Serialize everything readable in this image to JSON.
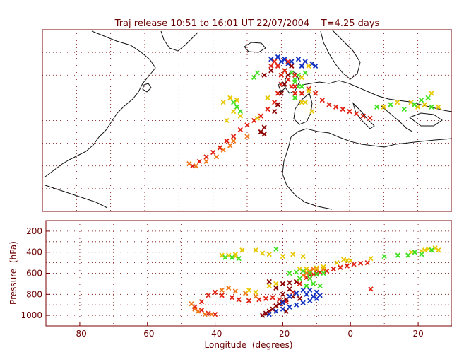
{
  "colors": {
    "frame": "#7a0000",
    "grid": "#7a0000",
    "coast": "#111111",
    "red": "#e02010",
    "darkred": "#8b0000",
    "orange": "#f07818",
    "yellow": "#e8c800",
    "green": "#40e020",
    "blue": "#1030c0"
  },
  "chart_data": [
    {
      "type": "scatter",
      "title": "Traj release 10:51 to 16:01 UT 22/07/2004    T=4.25 days",
      "xlim": [
        -90,
        30
      ],
      "ylim": [
        0,
        80
      ],
      "grid": true,
      "series": [
        {
          "color": "blue",
          "points": [
            [
              -23,
              67
            ],
            [
              -21,
              68
            ],
            [
              -19,
              67
            ],
            [
              -17,
              66
            ],
            [
              -15,
              67
            ],
            [
              -13,
              66
            ],
            [
              -11,
              65
            ],
            [
              -10,
              64
            ],
            [
              -18,
              65
            ],
            [
              -14,
              64
            ],
            [
              -20,
              66
            ]
          ]
        },
        {
          "color": "green",
          "points": [
            [
              -19,
              62
            ],
            [
              -17,
              61
            ],
            [
              -15,
              60
            ],
            [
              -13,
              61
            ],
            [
              -16,
              58
            ],
            [
              -15,
              55
            ],
            [
              -14,
              52
            ],
            [
              -16,
              50
            ],
            [
              -33,
              46
            ],
            [
              -32,
              44
            ],
            [
              -16,
              57
            ],
            [
              -14,
              55
            ]
          ]
        },
        {
          "color": "red",
          "points": [
            [
              -46,
              20
            ],
            [
              -44,
              22
            ],
            [
              -42,
              24
            ],
            [
              -40,
              26
            ],
            [
              -38,
              28
            ],
            [
              -36,
              31
            ],
            [
              -34,
              33
            ],
            [
              -32,
              36
            ],
            [
              -30,
              38
            ],
            [
              -28,
              40
            ],
            [
              -26,
              42
            ],
            [
              -24,
              45
            ],
            [
              -22,
              48
            ],
            [
              -21,
              52
            ],
            [
              -20,
              56
            ],
            [
              -20,
              60
            ],
            [
              -21,
              64
            ],
            [
              -22,
              66
            ],
            [
              -19,
              62
            ],
            [
              -18,
              58
            ],
            [
              -17,
              55
            ],
            [
              -16,
              52
            ],
            [
              -14,
              52
            ],
            [
              -12,
              54
            ],
            [
              -10,
              52
            ],
            [
              -8,
              49
            ],
            [
              -6,
              47
            ],
            [
              -4,
              46
            ],
            [
              -2,
              45
            ],
            [
              0,
              44
            ],
            [
              2,
              43
            ],
            [
              4,
              42
            ],
            [
              6,
              41
            ],
            [
              -23,
              64
            ],
            [
              -18,
              66
            ],
            [
              -16,
              60
            ],
            [
              -16,
              55
            ]
          ]
        },
        {
          "color": "darkred",
          "points": [
            [
              -26,
              35
            ],
            [
              -25,
              34
            ],
            [
              -25,
              37
            ],
            [
              -22,
              44
            ],
            [
              -21,
              47
            ],
            [
              -20,
              52
            ],
            [
              -19,
              56
            ],
            [
              -18,
              60
            ],
            [
              -17,
              64
            ],
            [
              -25,
              60
            ],
            [
              -23,
              62
            ]
          ]
        },
        {
          "color": "orange",
          "points": [
            [
              -47,
              21
            ],
            [
              -45,
              20
            ],
            [
              -42,
              22
            ],
            [
              -39,
              24
            ],
            [
              -37,
              27
            ],
            [
              -35,
              29
            ],
            [
              -30,
              33
            ],
            [
              -34,
              31
            ]
          ]
        },
        {
          "color": "yellow",
          "points": [
            [
              -37,
              48
            ],
            [
              -35,
              50
            ],
            [
              -34,
              44
            ],
            [
              -32,
              42
            ],
            [
              -36,
              40
            ],
            [
              -27,
              41
            ],
            [
              -24,
              50
            ],
            [
              -14,
              48
            ],
            [
              -12,
              53
            ],
            [
              -14,
              59
            ],
            [
              -12,
              64
            ],
            [
              -13,
              48
            ],
            [
              -11,
              44
            ],
            [
              10,
              46
            ],
            [
              14,
              48
            ],
            [
              18,
              48
            ],
            [
              24,
              52
            ],
            [
              22,
              47
            ],
            [
              20,
              46
            ],
            [
              26,
              46
            ],
            [
              -33,
              49
            ]
          ]
        },
        {
          "color": "green",
          "points": [
            [
              16,
              45
            ],
            [
              19,
              47
            ],
            [
              21,
              49
            ],
            [
              23,
              50
            ],
            [
              12,
              47
            ],
            [
              24,
              46
            ],
            [
              -28,
              59
            ],
            [
              -27,
              61
            ],
            [
              8,
              46
            ],
            [
              -34,
              48
            ]
          ]
        }
      ]
    },
    {
      "type": "scatter",
      "title": "",
      "xlabel": "Longitude  (degrees)",
      "ylabel": "Pressure  (hPa)",
      "xlim": [
        -90,
        30
      ],
      "ylim": [
        1100,
        100
      ],
      "xticks": [
        -80,
        -60,
        -40,
        -20,
        0,
        20
      ],
      "yticks": [
        200,
        400,
        600,
        800,
        1000
      ],
      "grid": true,
      "series": [
        {
          "color": "red",
          "points": [
            [
              -46,
              920
            ],
            [
              -44,
              870
            ],
            [
              -42,
              810
            ],
            [
              -40,
              780
            ],
            [
              -38,
              810
            ],
            [
              -35,
              830
            ],
            [
              -33,
              850
            ],
            [
              -30,
              860
            ],
            [
              -27,
              850
            ],
            [
              -25,
              840
            ],
            [
              -23,
              830
            ],
            [
              -21,
              850
            ],
            [
              -19,
              870
            ],
            [
              -17,
              780
            ],
            [
              -15,
              700
            ],
            [
              -13,
              640
            ],
            [
              -11,
              610
            ],
            [
              -9,
              590
            ],
            [
              -7,
              580
            ],
            [
              -5,
              560
            ],
            [
              -3,
              545
            ],
            [
              -1,
              530
            ],
            [
              1,
              515
            ],
            [
              3,
              505
            ],
            [
              5,
              500
            ],
            [
              -44,
              950
            ],
            [
              -42,
              980
            ],
            [
              -40,
              990
            ],
            [
              -12,
              620
            ],
            [
              -10,
              600
            ],
            [
              -16,
              680
            ],
            [
              6,
              750
            ]
          ]
        },
        {
          "color": "darkred",
          "points": [
            [
              -26,
              1000
            ],
            [
              -25,
              980
            ],
            [
              -24,
              960
            ],
            [
              -23,
              940
            ],
            [
              -22,
              910
            ],
            [
              -21,
              890
            ],
            [
              -20,
              870
            ],
            [
              -19,
              850
            ],
            [
              -22,
              740
            ],
            [
              -20,
              700
            ],
            [
              -18,
              690
            ],
            [
              -16,
              680
            ],
            [
              -24,
              680
            ],
            [
              -18,
              750
            ],
            [
              -20,
              800
            ],
            [
              -17,
              820
            ],
            [
              -15,
              840
            ],
            [
              -19,
              960
            ]
          ]
        },
        {
          "color": "orange",
          "points": [
            [
              -47,
              890
            ],
            [
              -46,
              940
            ],
            [
              -45,
              960
            ],
            [
              -43,
              990
            ],
            [
              -41,
              990
            ],
            [
              -38,
              760
            ],
            [
              -36,
              740
            ],
            [
              -34,
              770
            ],
            [
              -31,
              790
            ],
            [
              -28,
              820
            ],
            [
              -12,
              580
            ],
            [
              -10,
              560
            ],
            [
              -8,
              560
            ],
            [
              -13,
              600
            ],
            [
              -14,
              620
            ],
            [
              -11,
              560
            ]
          ]
        },
        {
          "color": "yellow",
          "points": [
            [
              -38,
              430
            ],
            [
              -36,
              430
            ],
            [
              -34,
              440
            ],
            [
              -32,
              380
            ],
            [
              -28,
              380
            ],
            [
              -26,
              410
            ],
            [
              -24,
              420
            ],
            [
              -20,
              440
            ],
            [
              -17,
              420
            ],
            [
              -14,
              440
            ],
            [
              -30,
              760
            ],
            [
              -28,
              780
            ],
            [
              -24,
              720
            ],
            [
              -22,
              700
            ],
            [
              -15,
              560
            ],
            [
              -13,
              560
            ],
            [
              -10,
              550
            ],
            [
              -8,
              540
            ],
            [
              0,
              480
            ],
            [
              6,
              460
            ],
            [
              -4,
              500
            ],
            [
              -2,
              470
            ],
            [
              -1,
              480
            ],
            [
              18,
              400
            ],
            [
              21,
              390
            ],
            [
              23,
              370
            ],
            [
              25,
              360
            ],
            [
              22,
              380
            ],
            [
              26,
              380
            ],
            [
              -34,
              420
            ]
          ]
        },
        {
          "color": "green",
          "points": [
            [
              -37,
              450
            ],
            [
              -35,
              450
            ],
            [
              -33,
              460
            ],
            [
              -22,
              370
            ],
            [
              -18,
              600
            ],
            [
              -16,
              590
            ],
            [
              -14,
              580
            ],
            [
              -12,
              600
            ],
            [
              -10,
              610
            ],
            [
              -8,
              600
            ],
            [
              -13,
              720
            ],
            [
              -11,
              700
            ],
            [
              -9,
              720
            ],
            [
              10,
              440
            ],
            [
              14,
              430
            ],
            [
              17,
              430
            ],
            [
              24,
              380
            ],
            [
              19,
              400
            ],
            [
              21,
              420
            ],
            [
              -15,
              650
            ],
            [
              -12,
              650
            ]
          ]
        },
        {
          "color": "blue",
          "points": [
            [
              -24,
              990
            ],
            [
              -22,
              960
            ],
            [
              -20,
              940
            ],
            [
              -18,
              920
            ],
            [
              -16,
              900
            ],
            [
              -14,
              880
            ],
            [
              -12,
              860
            ],
            [
              -10,
              840
            ],
            [
              -9,
              810
            ],
            [
              -10,
              780
            ],
            [
              -12,
              760
            ],
            [
              -14,
              760
            ],
            [
              -16,
              790
            ],
            [
              -18,
              820
            ],
            [
              -13,
              800
            ],
            [
              -11,
              820
            ],
            [
              -20,
              880
            ]
          ]
        }
      ]
    }
  ]
}
